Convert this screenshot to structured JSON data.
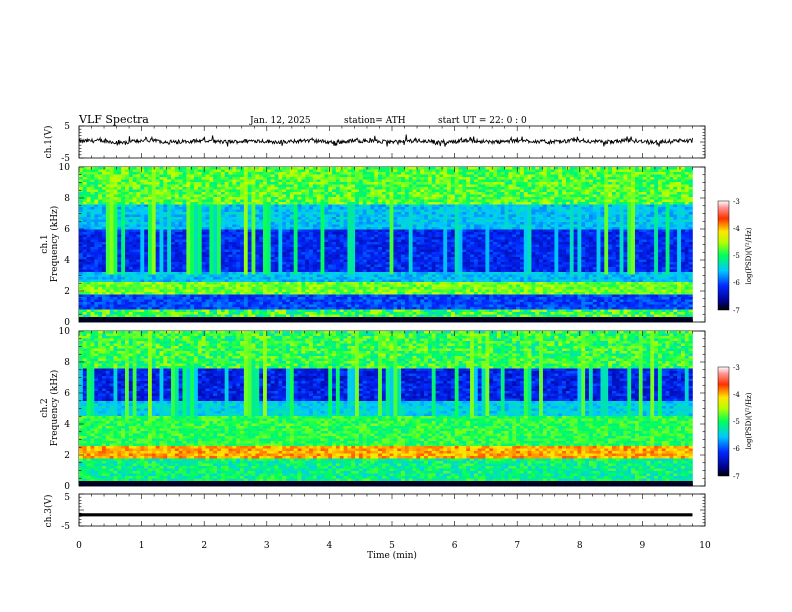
{
  "header": {
    "title": "VLF  Spectra",
    "date": "Jan. 12, 2025",
    "station": "station= ATH",
    "start": "start  UT  =   22: 0  : 0"
  },
  "chart_data": [
    {
      "type": "line",
      "name": "ch1-waveform",
      "ylabel": "ch.1(V)",
      "ylim": [
        -5,
        5
      ],
      "yticks": [
        "5",
        "-5"
      ],
      "xlim": [
        0,
        10
      ],
      "x_extent": 9.8,
      "approx_level": 0.2,
      "approx_noise": 1.2
    },
    {
      "type": "heatmap",
      "name": "ch1-spectrogram",
      "ylabel": "ch.1\nFrequency  (kHz)",
      "ylim": [
        0,
        10
      ],
      "yticks": [
        "0",
        "2",
        "4",
        "6",
        "8",
        "10"
      ],
      "xlim": [
        0,
        10
      ],
      "x_extent": 9.8,
      "colorbar": {
        "label": "log(PSD)(V²/Hz)",
        "range": [
          -7,
          -3
        ],
        "ticks": [
          "-3",
          "-4",
          "-5",
          "-6",
          "-7"
        ]
      }
    },
    {
      "type": "heatmap",
      "name": "ch2-spectrogram",
      "ylabel": "ch.2\nFrequency  (kHz)",
      "ylim": [
        0,
        10
      ],
      "yticks": [
        "0",
        "2",
        "4",
        "6",
        "8",
        "10"
      ],
      "xlim": [
        0,
        10
      ],
      "x_extent": 9.8,
      "colorbar": {
        "label": "log(PSD)(V²/Hz)",
        "range": [
          -7,
          -3
        ],
        "ticks": [
          "-3",
          "-4",
          "-5",
          "-6",
          "-7"
        ]
      }
    },
    {
      "type": "line",
      "name": "ch3-waveform",
      "ylabel": "ch.3(V)",
      "ylim": [
        -5,
        5
      ],
      "yticks": [
        "5",
        "-5"
      ],
      "xlim": [
        0,
        10
      ],
      "x_extent": 9.8,
      "approx_level": -1.5
    }
  ],
  "xaxis": {
    "label": "Time  (min)",
    "ticks": [
      "0",
      "1",
      "2",
      "3",
      "4",
      "5",
      "6",
      "7",
      "8",
      "9",
      "10"
    ]
  }
}
